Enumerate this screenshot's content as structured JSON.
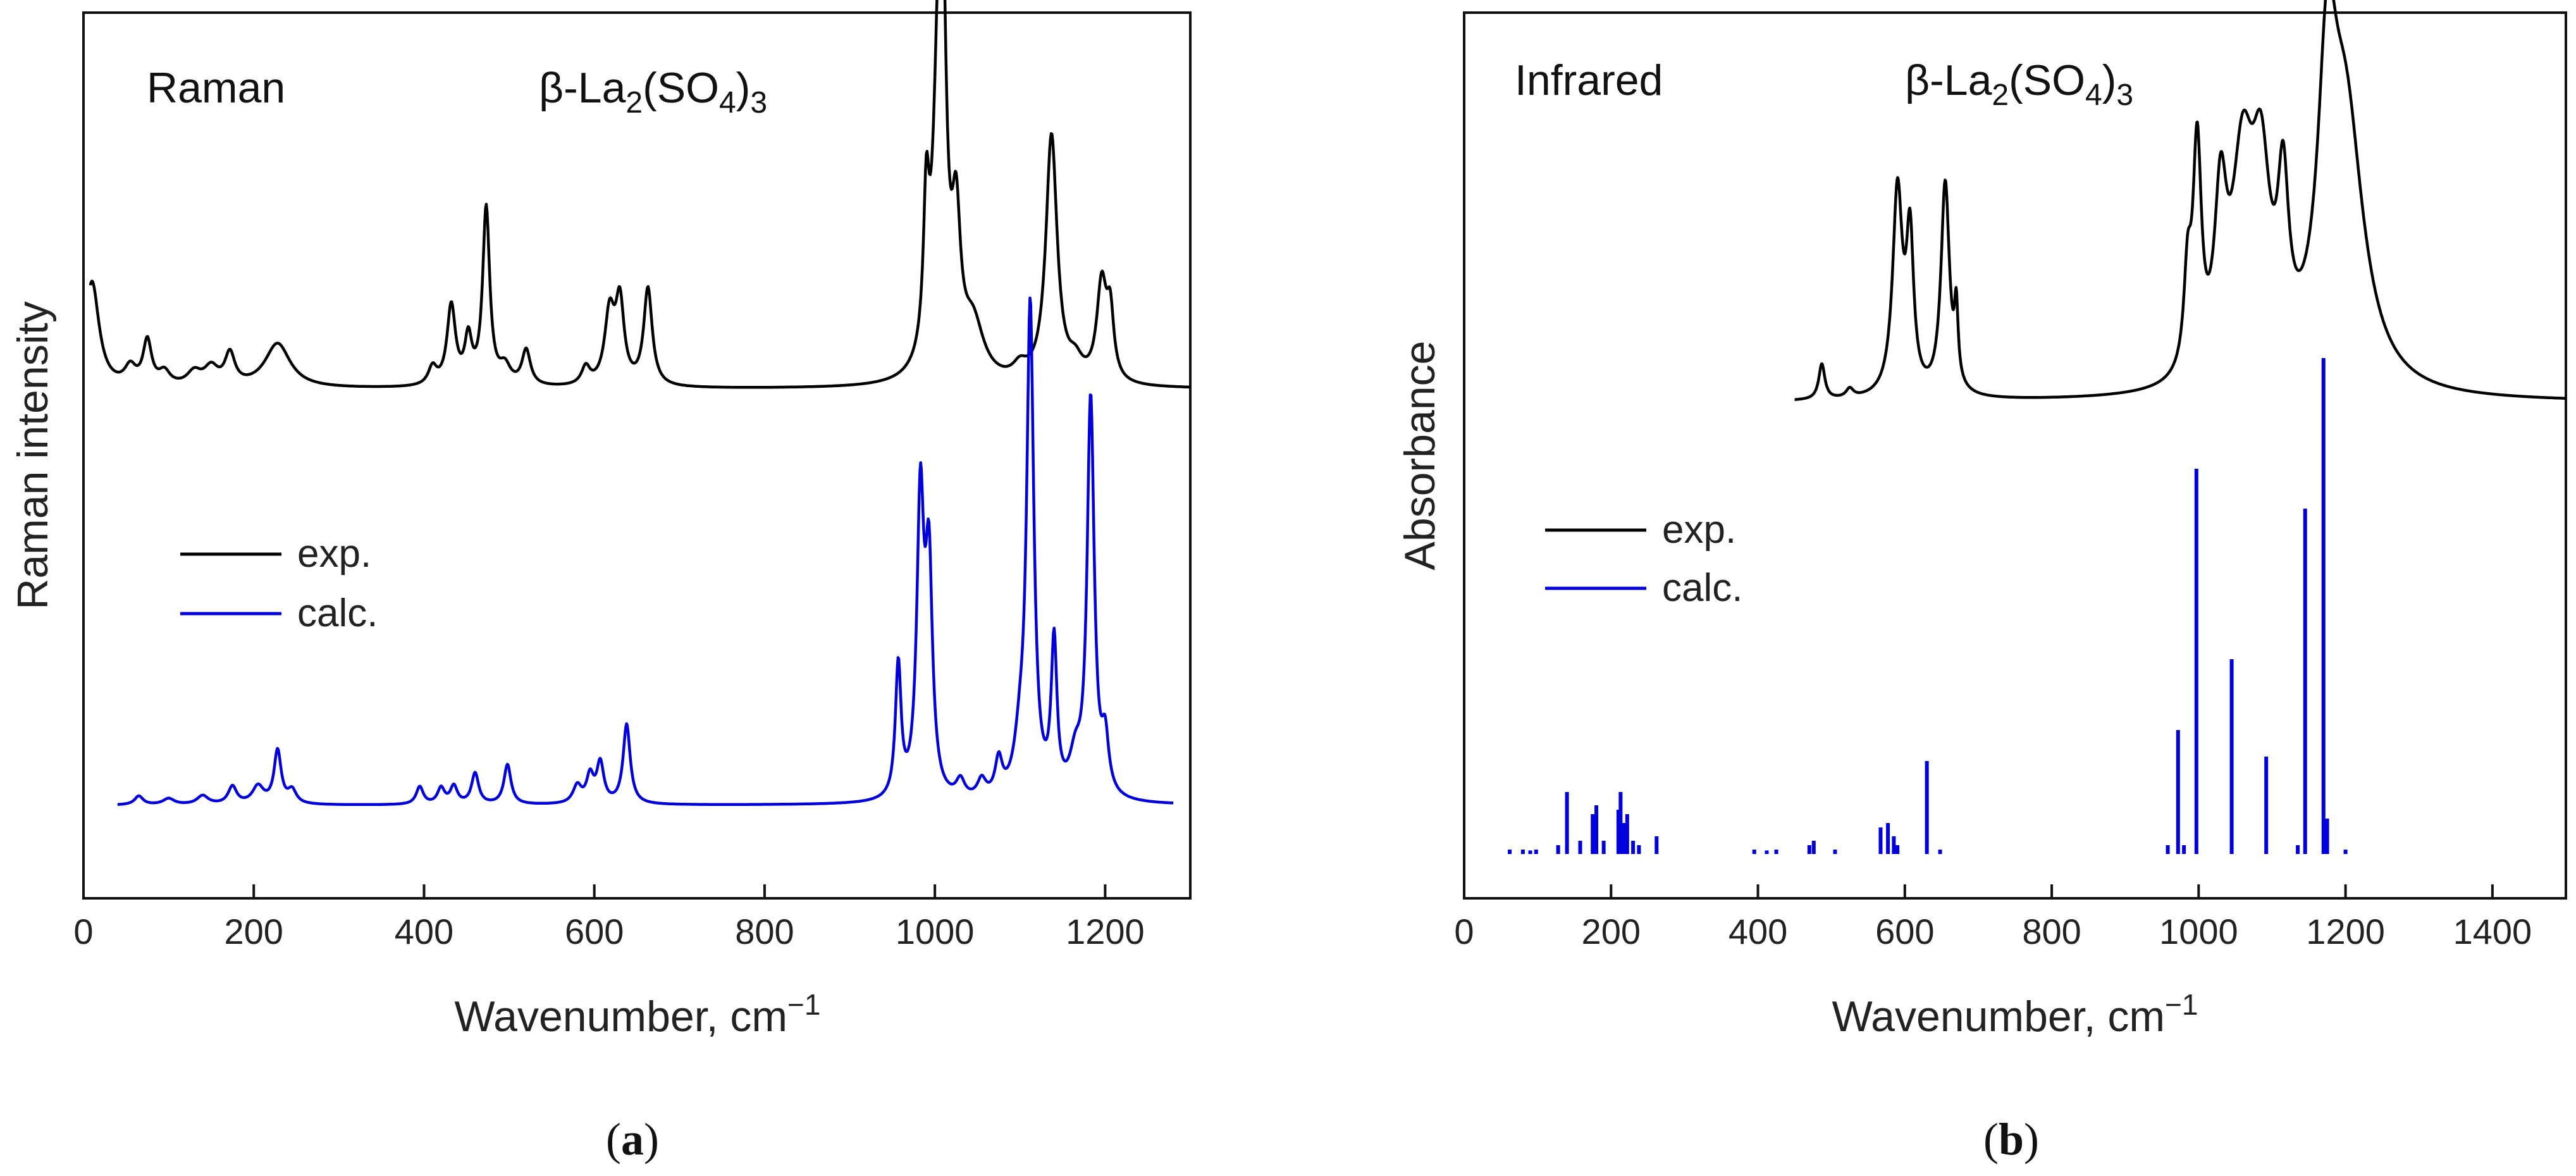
{
  "chart_data": [
    {
      "type": "line",
      "panel": "a",
      "title_left": "Raman",
      "title_formula": "β-La2(SO4)3",
      "formula_parts": {
        "pre": "β-La",
        "sub1": "2",
        "mid": "(SO",
        "sub2": "4",
        "post": ")",
        "sub3": "3"
      },
      "xlabel": "Wavenumber, cm",
      "xlabel_sup": "−1",
      "ylabel": "Raman intensity",
      "xlim": [
        0,
        1300
      ],
      "ylim": [
        0,
        100
      ],
      "xticks": [
        0,
        200,
        400,
        600,
        800,
        1000,
        1200
      ],
      "legend": [
        "exp.",
        "calc."
      ],
      "legend_position": "center-left",
      "caption": "a",
      "series": [
        {
          "name": "exp.",
          "color": "#000000",
          "baseline": 57.5,
          "x_range": [
            8,
            1300
          ],
          "peaks": [
            [
              10,
              12,
              10
            ],
            [
              55,
              2,
              8
            ],
            [
              75,
              5,
              6
            ],
            [
              95,
              1.5,
              8
            ],
            [
              130,
              1.5,
              10
            ],
            [
              150,
              2,
              10
            ],
            [
              172,
              3.5,
              7
            ],
            [
              228,
              5,
              18
            ],
            [
              410,
              2,
              6
            ],
            [
              432,
              9,
              6
            ],
            [
              452,
              5,
              5
            ],
            [
              473,
              20,
              5
            ],
            [
              495,
              2,
              8
            ],
            [
              520,
              4,
              6
            ],
            [
              590,
              2,
              6
            ],
            [
              618,
              8,
              7
            ],
            [
              630,
              9,
              6
            ],
            [
              663,
              11,
              6
            ],
            [
              990,
              16,
              4
            ],
            [
              1005,
              40,
              8
            ],
            [
              1010,
              20,
              4
            ],
            [
              1025,
              15,
              6
            ],
            [
              1045,
              6,
              15
            ],
            [
              1100,
              1.5,
              10
            ],
            [
              1137,
              28,
              8
            ],
            [
              1165,
              2,
              10
            ],
            [
              1196,
              11,
              7
            ],
            [
              1206,
              7,
              5
            ]
          ]
        },
        {
          "name": "calc.",
          "color": "#0000dd",
          "baseline": 10.5,
          "x_range": [
            40,
            1280
          ],
          "peaks": [
            [
              65,
              1,
              6
            ],
            [
              100,
              0.7,
              8
            ],
            [
              140,
              1,
              8
            ],
            [
              175,
              2,
              6
            ],
            [
              205,
              2,
              8
            ],
            [
              228,
              6,
              5
            ],
            [
              245,
              1.5,
              6
            ],
            [
              395,
              2,
              5
            ],
            [
              420,
              1.8,
              5
            ],
            [
              435,
              2,
              5
            ],
            [
              460,
              3.5,
              5
            ],
            [
              498,
              4.5,
              5
            ],
            [
              580,
              2,
              6
            ],
            [
              595,
              3,
              5
            ],
            [
              607,
              4.5,
              5
            ],
            [
              638,
              9,
              5
            ],
            [
              957,
              15,
              4
            ],
            [
              983,
              33,
              5
            ],
            [
              993,
              25,
              5
            ],
            [
              1030,
              2,
              6
            ],
            [
              1055,
              2,
              6
            ],
            [
              1075,
              4,
              5
            ],
            [
              1100,
              5,
              8
            ],
            [
              1112,
              55,
              5
            ],
            [
              1140,
              17,
              4
            ],
            [
              1165,
              4,
              8
            ],
            [
              1183,
              45,
              5
            ],
            [
              1200,
              6,
              5
            ]
          ]
        }
      ]
    },
    {
      "type": "line",
      "panel": "b",
      "title_left": "Infrared",
      "title_formula": "β-La2(SO4)3",
      "formula_parts": {
        "pre": "β-La",
        "sub1": "2",
        "mid": "(SO",
        "sub2": "4",
        "post": ")",
        "sub3": "3"
      },
      "xlabel": "Wavenumber, cm",
      "xlabel_sup": "−1",
      "ylabel": "Absorbance",
      "xlim": [
        0,
        1500
      ],
      "ylim": [
        0,
        100
      ],
      "xticks": [
        0,
        200,
        400,
        600,
        800,
        1000,
        1200,
        1400
      ],
      "legend": [
        "exp.",
        "calc."
      ],
      "legend_position": "center-left",
      "caption": "b",
      "series": [
        {
          "name": "exp.",
          "color": "#000000",
          "baseline": 56,
          "x_range": [
            450,
            1500
          ],
          "peaks": [
            [
              487,
              4,
              5
            ],
            [
              525,
              1,
              6
            ],
            [
              590,
              23,
              8
            ],
            [
              607,
              17,
              6
            ],
            [
              655,
              24,
              7
            ],
            [
              670,
              8,
              3
            ],
            [
              985,
              10,
              6
            ],
            [
              998,
              25,
              7
            ],
            [
              1030,
              18,
              10
            ],
            [
              1060,
              23,
              18
            ],
            [
              1085,
              20,
              15
            ],
            [
              1115,
              18,
              9
            ],
            [
              1175,
              28,
              15
            ],
            [
              1200,
              30,
              30
            ]
          ]
        },
        {
          "name": "calc.",
          "color": "#0000dd",
          "style": "stick",
          "baseline": 5,
          "sticks": [
            [
              62,
              0.5
            ],
            [
              80,
              0.5
            ],
            [
              90,
              0.4
            ],
            [
              98,
              0.5
            ],
            [
              128,
              1
            ],
            [
              140,
              7
            ],
            [
              158,
              1.5
            ],
            [
              175,
              4.5
            ],
            [
              180,
              5.5
            ],
            [
              190,
              1.5
            ],
            [
              210,
              5
            ],
            [
              213,
              7
            ],
            [
              218,
              3.5
            ],
            [
              222,
              4.5
            ],
            [
              230,
              1.5
            ],
            [
              238,
              1
            ],
            [
              262,
              2
            ],
            [
              395,
              0.5
            ],
            [
              412,
              0.4
            ],
            [
              425,
              0.5
            ],
            [
              470,
              1
            ],
            [
              476,
              1.5
            ],
            [
              505,
              0.5
            ],
            [
              567,
              3
            ],
            [
              577,
              3.5
            ],
            [
              585,
              2
            ],
            [
              590,
              1
            ],
            [
              630,
              10.5
            ],
            [
              648,
              0.5
            ],
            [
              958,
              1
            ],
            [
              972,
              14
            ],
            [
              980,
              1
            ],
            [
              997,
              43.5
            ],
            [
              1045,
              22
            ],
            [
              1092,
              11
            ],
            [
              1135,
              1
            ],
            [
              1145,
              39
            ],
            [
              1170,
              56
            ],
            [
              1175,
              4
            ],
            [
              1200,
              0.5
            ]
          ]
        }
      ]
    }
  ]
}
